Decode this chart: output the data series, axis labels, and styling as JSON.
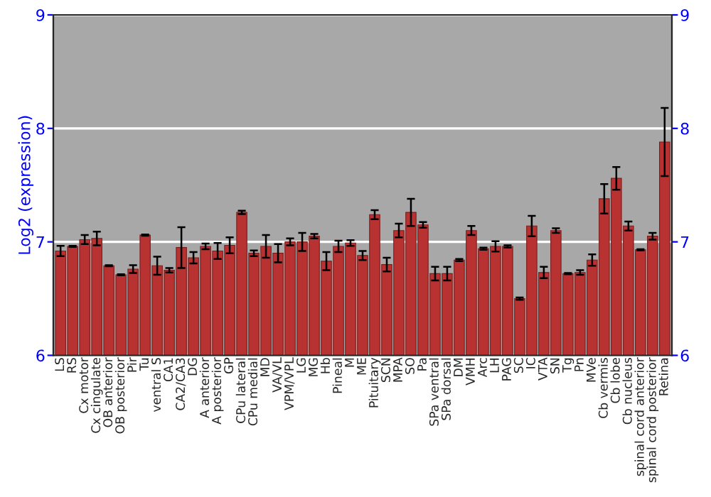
{
  "chart_data": {
    "type": "bar",
    "ylabel": "Log2 (expression)",
    "categories": [
      "LS",
      "RS",
      "Cx motor",
      "Cx cingulate",
      "OB anterior",
      "OB posterior",
      "Pir",
      "Tu",
      "ventral S",
      "CA1",
      "CA2/CA3",
      "DG",
      "A anterior",
      "A posterior",
      "GP",
      "CPu lateral",
      "CPu medial",
      "MD",
      "VA/VL",
      "VPM/VPL",
      "LG",
      "MG",
      "Hb",
      "Pineal",
      "M",
      "ME",
      "Pituitary",
      "SCN",
      "MPA",
      "SO",
      "Pa",
      "SPa ventral",
      "SPa dorsal",
      "DM",
      "VMH",
      "Arc",
      "LH",
      "PAG",
      "SC",
      "IC",
      "VTA",
      "SN",
      "Tg",
      "Pn",
      "MVe",
      "Cb vermis",
      "Cb lobe",
      "Cb nucleus",
      "spinal cord anterior",
      "spinal cord posterior",
      "Retina"
    ],
    "values": [
      6.92,
      6.96,
      7.02,
      7.03,
      6.79,
      6.71,
      6.76,
      7.06,
      6.79,
      6.75,
      6.95,
      6.86,
      6.96,
      6.92,
      6.97,
      7.26,
      6.9,
      6.96,
      6.9,
      7.0,
      7.0,
      7.05,
      6.83,
      6.96,
      6.99,
      6.88,
      7.24,
      6.8,
      7.1,
      7.26,
      7.15,
      6.72,
      6.72,
      6.84,
      7.1,
      6.94,
      6.96,
      6.96,
      6.5,
      7.14,
      6.73,
      7.1,
      6.72,
      6.73,
      6.84,
      7.38,
      7.56,
      7.14,
      6.93,
      7.05,
      7.88
    ],
    "errors": [
      0.045,
      0.005,
      0.04,
      0.06,
      0.005,
      0.005,
      0.035,
      0.005,
      0.08,
      0.02,
      0.18,
      0.05,
      0.025,
      0.07,
      0.07,
      0.015,
      0.025,
      0.1,
      0.08,
      0.03,
      0.08,
      0.02,
      0.08,
      0.05,
      0.025,
      0.04,
      0.04,
      0.06,
      0.06,
      0.12,
      0.025,
      0.06,
      0.06,
      0.01,
      0.04,
      0.01,
      0.045,
      0.01,
      0.01,
      0.09,
      0.05,
      0.02,
      0.005,
      0.02,
      0.05,
      0.13,
      0.1,
      0.04,
      0.005,
      0.03,
      0.3
    ],
    "color": "#b83232",
    "ylim": [
      6,
      9
    ],
    "yticks": [
      6,
      7,
      8,
      9
    ],
    "y2lim": [
      6,
      9
    ],
    "y2ticks": [
      6,
      7,
      8,
      9
    ],
    "grid": "y"
  }
}
